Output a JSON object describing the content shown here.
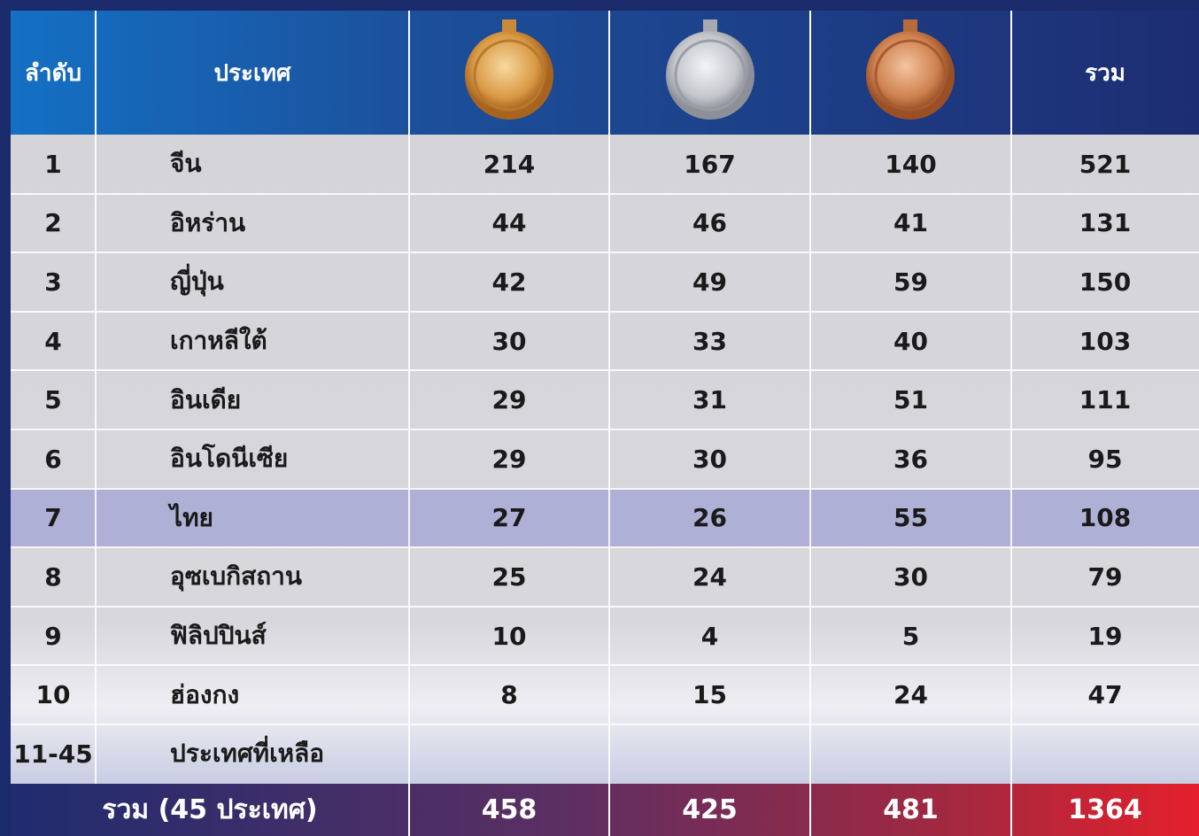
{
  "header": {
    "rank": "ลำดับ",
    "country": "ประเทศ",
    "total": "รวม"
  },
  "table": {
    "rows": [
      [
        1,
        "จีน",
        214,
        167,
        140,
        521
      ],
      [
        2,
        "อิหร่าน",
        44,
        46,
        41,
        131
      ],
      [
        3,
        "ญี่ปุ่น",
        42,
        49,
        59,
        150
      ],
      [
        4,
        "เกาหลีใต้",
        30,
        33,
        40,
        103
      ],
      [
        5,
        "อินเดีย",
        29,
        31,
        51,
        111
      ],
      [
        6,
        "อินโดนีเซีย",
        29,
        30,
        36,
        95
      ],
      [
        7,
        "ไทย",
        27,
        26,
        55,
        108
      ],
      [
        8,
        "อุซเบกิสถาน",
        25,
        24,
        30,
        79
      ],
      [
        9,
        "ฟิลิปปินส์",
        10,
        4,
        5,
        19
      ],
      [
        10,
        "ฮ่องกง",
        8,
        15,
        24,
        47
      ],
      [
        "11-45",
        "ประเทศที่เหลือ"
      ]
    ]
  },
  "footer": {
    "label": "รวม (45 ประเทศ)",
    "values": [
      458,
      425,
      481,
      1364
    ]
  }
}
